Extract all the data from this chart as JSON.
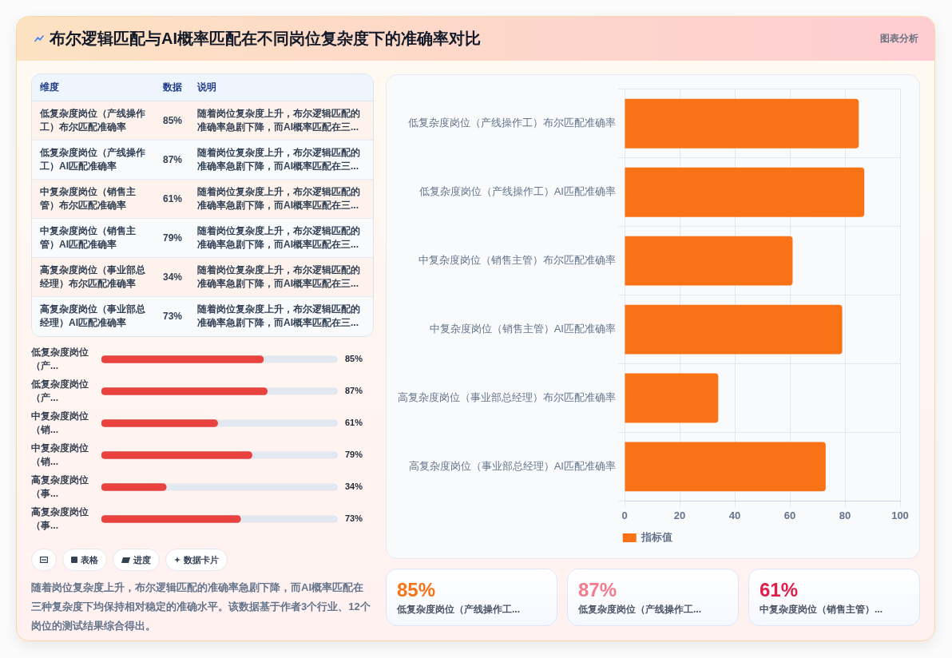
{
  "chart_data": [
    {
      "type": "other",
      "title": "布尔逻辑匹配与AI概率匹配在不同岗位复杂度下的准确率对比",
      "annotations": [
        "图表分析"
      ]
    },
    {
      "type": "other",
      "categories": [
        "低复杂度岗位（产线操作工）布尔匹配准确率",
        "低复杂度岗位（产线操作工）AI匹配准确率",
        "中复杂度岗位（销售主管）布尔匹配准确率",
        "中复杂度岗位（销售主管）AI匹配准确率",
        "高复杂度岗位（事业部总经理）布尔匹配准确率",
        "高复杂度岗位（事业部总经理）AI匹配准确率"
      ],
      "value_labels": [
        "85%",
        "87%",
        "61%",
        "79%",
        "34%",
        "73%"
      ],
      "annotations": [
        "维度",
        "数据",
        "说明",
        "随着岗位复杂度上升，布尔逻辑匹配的准确率急剧下降，而AI概率匹配在三...",
        "随着岗位复杂度上升，布尔逻辑匹配的准确率急剧下降，而AI概率匹配在三...",
        "随着岗位复杂度上升，布尔逻辑匹配的准确率急剧下降，而AI概率匹配在三...",
        "随着岗位复杂度上升，布尔逻辑匹配的准确率急剧下降，而AI概率匹配在三...",
        "随着岗位复杂度上升，布尔逻辑匹配的准确率急剧下降，而AI概率匹配在三...",
        "随着岗位复杂度上升，布尔逻辑匹配的准确率急剧下降，而AI概率匹配在三..."
      ]
    },
    {
      "type": "bar",
      "orientation": "horizontal",
      "categories": [
        "低复杂度岗位（产...",
        "低复杂度岗位（产...",
        "中复杂度岗位（销...",
        "中复杂度岗位（销...",
        "高复杂度岗位（事...",
        "高复杂度岗位（事..."
      ],
      "values": [
        85,
        87,
        61,
        79,
        34,
        73
      ],
      "value_labels": [
        "85%",
        "87%",
        "61%",
        "79%",
        "34%",
        "73%"
      ],
      "color": "#e9423f",
      "xlim": [
        0,
        124
      ],
      "tick_labels": "y"
    },
    {
      "type": "other",
      "annotations": [
        "表格",
        "进度",
        "数据卡片",
        "随着岗位复杂度上升，布尔逻辑匹配的准确率急剧下降，而AI概率匹配在三种复杂度下均保持相对稳定的准确水平。该数据基于作者3个行业、12个岗位的测试结果综合得出。"
      ]
    },
    {
      "type": "bar",
      "orientation": "horizontal",
      "categories": [
        "低复杂度岗位（产线操作工）布尔匹配准确率",
        "低复杂度岗位（产线操作工）AI匹配准确率",
        "中复杂度岗位（销售主管）布尔匹配准确率",
        "中复杂度岗位（销售主管）AI匹配准确率",
        "高复杂度岗位（事业部总经理）布尔匹配准确率",
        "高复杂度岗位（事业部总经理）AI匹配准确率"
      ],
      "series": [
        {
          "name": "指标值",
          "color": "#f97316",
          "values": [
            85,
            87,
            61,
            79,
            34,
            73
          ]
        }
      ],
      "xlim": [
        0,
        100
      ],
      "xticks": [
        0,
        20,
        40,
        60,
        80,
        100
      ],
      "grid": true,
      "legend": "bottom"
    },
    {
      "type": "other",
      "categories": [
        "低复杂度岗位（产线操作工...",
        "低复杂度岗位（产线操作工...",
        "中复杂度岗位（销售主管）..."
      ],
      "value_labels": [
        "85%",
        "87%",
        "61%"
      ]
    }
  ]
}
